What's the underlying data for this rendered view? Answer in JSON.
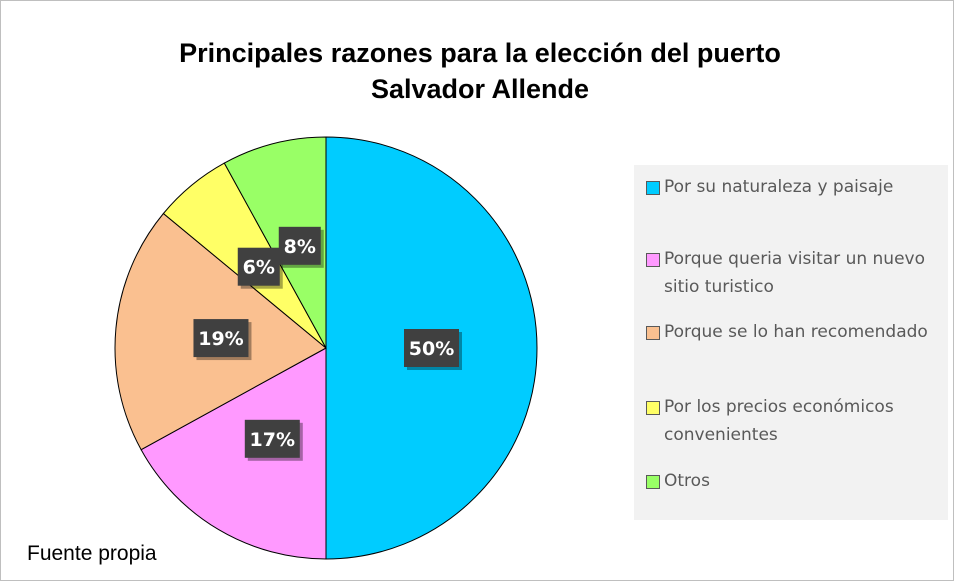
{
  "chart_data": {
    "type": "pie",
    "title": "Principales razones para la elección del puerto Salvador Allende",
    "categories": [
      "Por su naturaleza y paisaje",
      "Porque queria visitar un nuevo sitio turistico",
      "Porque se lo han recomendado",
      "Por los precios económicos convenientes",
      "Otros"
    ],
    "values": [
      50,
      17,
      19,
      6,
      8
    ],
    "value_labels": [
      "50%",
      "17%",
      "19%",
      "6%",
      "8%"
    ],
    "colors": [
      "#00ccff",
      "#ff99ff",
      "#fac090",
      "#ffff66",
      "#99ff66"
    ],
    "legend": "right",
    "source": "Fuente propia"
  }
}
